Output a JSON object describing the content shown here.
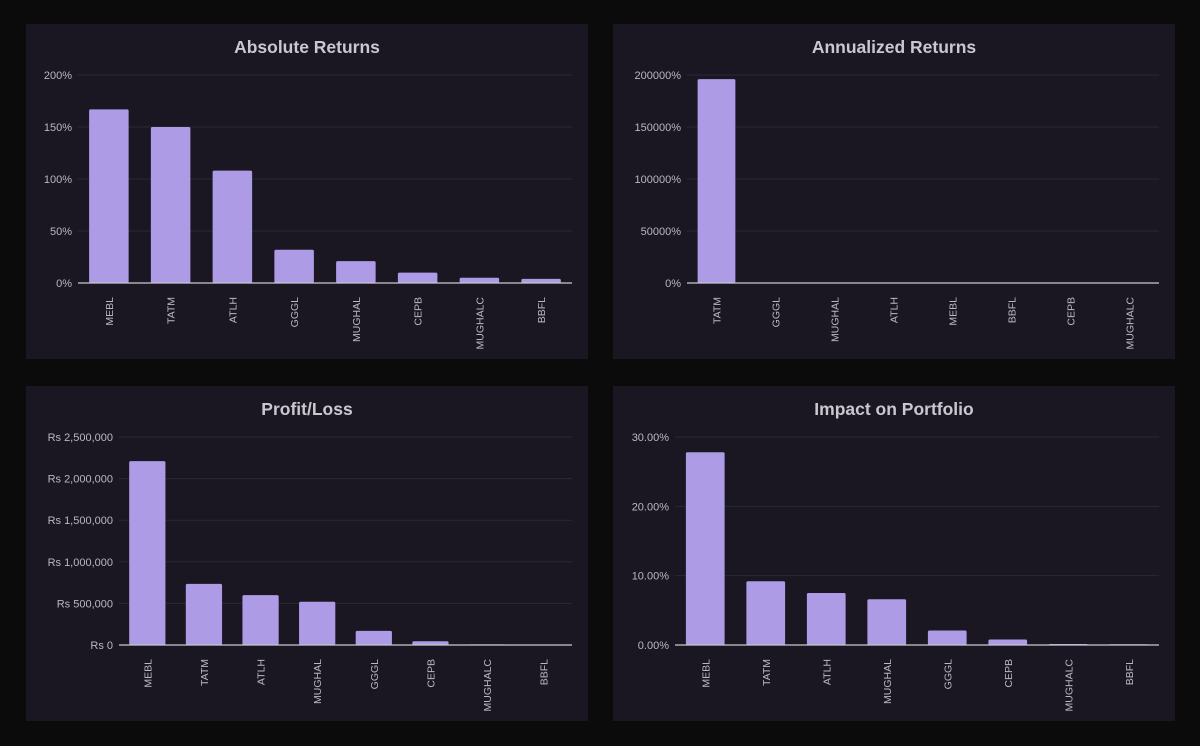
{
  "chart_data": [
    {
      "type": "bar",
      "title": "Absolute Returns",
      "categories": [
        "MEBL",
        "TATM",
        "ATLH",
        "GGGL",
        "MUGHAL",
        "CEPB",
        "MUGHALC",
        "BBFL"
      ],
      "values": [
        167,
        150,
        108,
        32,
        21,
        10,
        5,
        4
      ],
      "ylim": [
        0,
        200
      ],
      "yticks": [
        0,
        50,
        100,
        150,
        200
      ],
      "ytick_labels": [
        "0%",
        "50%",
        "100%",
        "150%",
        "200%"
      ],
      "bar_color": "#ad9be6",
      "grid": true
    },
    {
      "type": "bar",
      "title": "Annualized Returns",
      "categories": [
        "TATM",
        "GGGL",
        "MUGHAL",
        "ATLH",
        "MEBL",
        "BBFL",
        "CEPB",
        "MUGHALC"
      ],
      "values": [
        196000,
        300,
        150,
        120,
        90,
        60,
        40,
        20
      ],
      "ylim": [
        0,
        200000
      ],
      "yticks": [
        0,
        50000,
        100000,
        150000,
        200000
      ],
      "ytick_labels": [
        "0%",
        "50000%",
        "100000%",
        "150000%",
        "200000%"
      ],
      "bar_color": "#ad9be6",
      "grid": true
    },
    {
      "type": "bar",
      "title": "Profit/Loss",
      "categories": [
        "MEBL",
        "TATM",
        "ATLH",
        "MUGHAL",
        "GGGL",
        "CEPB",
        "MUGHALC",
        "BBFL"
      ],
      "values": [
        2210000,
        735000,
        600000,
        520000,
        170000,
        45000,
        8000,
        5000
      ],
      "ylim": [
        0,
        2500000
      ],
      "yticks": [
        0,
        500000,
        1000000,
        1500000,
        2000000,
        2500000
      ],
      "ytick_labels": [
        "Rs 0",
        "Rs 500,000",
        "Rs 1,000,000",
        "Rs 1,500,000",
        "Rs 2,000,000",
        "Rs 2,500,000"
      ],
      "bar_color": "#ad9be6",
      "grid": true
    },
    {
      "type": "bar",
      "title": "Impact on Portfolio",
      "categories": [
        "MEBL",
        "TATM",
        "ATLH",
        "MUGHAL",
        "GGGL",
        "CEPB",
        "MUGHALC",
        "BBFL"
      ],
      "values": [
        27.8,
        9.2,
        7.5,
        6.6,
        2.1,
        0.8,
        0.15,
        0.1
      ],
      "ylim": [
        0,
        30
      ],
      "yticks": [
        0,
        10,
        20,
        30
      ],
      "ytick_labels": [
        "0.00%",
        "10.00%",
        "20.00%",
        "30.00%"
      ],
      "bar_color": "#ad9be6",
      "grid": true
    }
  ]
}
